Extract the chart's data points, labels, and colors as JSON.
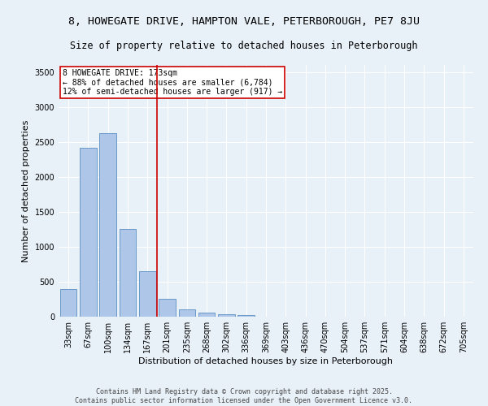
{
  "title": "8, HOWEGATE DRIVE, HAMPTON VALE, PETERBOROUGH, PE7 8JU",
  "subtitle": "Size of property relative to detached houses in Peterborough",
  "xlabel": "Distribution of detached houses by size in Peterborough",
  "ylabel": "Number of detached properties",
  "footer_line1": "Contains HM Land Registry data © Crown copyright and database right 2025.",
  "footer_line2": "Contains public sector information licensed under the Open Government Licence v3.0.",
  "categories": [
    "33sqm",
    "67sqm",
    "100sqm",
    "134sqm",
    "167sqm",
    "201sqm",
    "235sqm",
    "268sqm",
    "302sqm",
    "336sqm",
    "369sqm",
    "403sqm",
    "436sqm",
    "470sqm",
    "504sqm",
    "537sqm",
    "571sqm",
    "604sqm",
    "638sqm",
    "672sqm",
    "705sqm"
  ],
  "values": [
    390,
    2420,
    2630,
    1260,
    650,
    260,
    105,
    55,
    35,
    20,
    5,
    2,
    0,
    0,
    0,
    0,
    0,
    0,
    0,
    0,
    0
  ],
  "bar_color": "#aec6e8",
  "bar_edge_color": "#5a8fc2",
  "property_label": "8 HOWEGATE DRIVE: 173sqm",
  "annotation_line1": "← 88% of detached houses are smaller (6,784)",
  "annotation_line2": "12% of semi-detached houses are larger (917) →",
  "vline_color": "#cc0000",
  "vline_position": 4.5,
  "annotation_box_color": "#cc0000",
  "ylim": [
    0,
    3600
  ],
  "yticks": [
    0,
    500,
    1000,
    1500,
    2000,
    2500,
    3000,
    3500
  ],
  "background_color": "#e8f0f8",
  "grid_color": "#ffffff",
  "title_fontsize": 9.5,
  "subtitle_fontsize": 8.5,
  "axis_label_fontsize": 8,
  "tick_fontsize": 7,
  "annotation_fontsize": 7,
  "footer_fontsize": 6
}
